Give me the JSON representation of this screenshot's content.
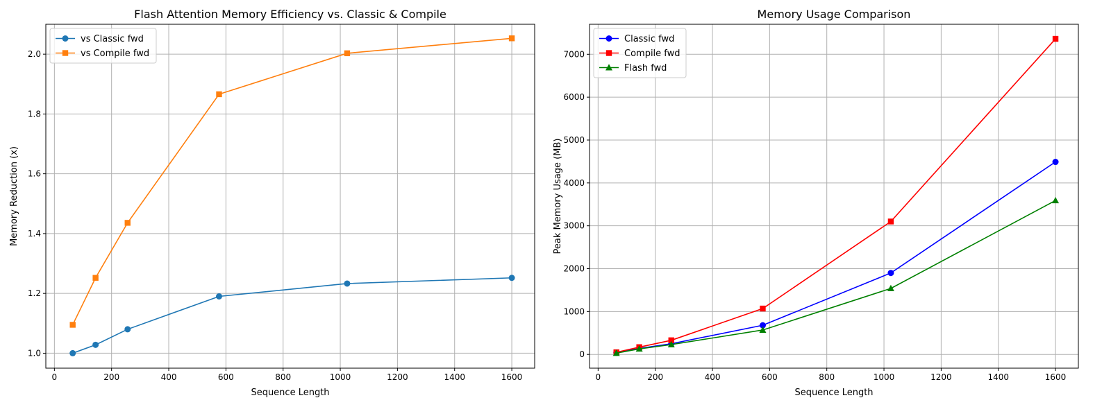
{
  "chart_data": [
    {
      "type": "line",
      "title": "Flash Attention Memory Efficiency vs. Classic & Compile",
      "xlabel": "Sequence Length",
      "ylabel": "Memory Reduction (x)",
      "xlim": [
        -30,
        1680
      ],
      "ylim": [
        0.95,
        2.1
      ],
      "xticks": [
        0,
        200,
        400,
        600,
        800,
        1000,
        1200,
        1400,
        1600
      ],
      "yticks": [
        1.0,
        1.2,
        1.4,
        1.6,
        1.8,
        2.0
      ],
      "ytick_decimals": 1,
      "grid": true,
      "legend_position": "upper left",
      "x": [
        64,
        144,
        256,
        576,
        1024,
        1600
      ],
      "series": [
        {
          "name": "vs Classic fwd",
          "color": "#1f77b4",
          "marker": "circle",
          "values": [
            1.0,
            1.028,
            1.08,
            1.19,
            1.233,
            1.252
          ]
        },
        {
          "name": "vs Compile fwd",
          "color": "#ff7f0e",
          "marker": "square",
          "values": [
            1.095,
            1.252,
            1.436,
            1.866,
            2.003,
            2.053
          ]
        }
      ]
    },
    {
      "type": "line",
      "title": "Memory Usage Comparison",
      "xlabel": "Sequence Length",
      "ylabel": "Peak Memory Usage (MB)",
      "xlim": [
        -30,
        1680
      ],
      "ylim": [
        -320,
        7700
      ],
      "xticks": [
        0,
        200,
        400,
        600,
        800,
        1000,
        1200,
        1400,
        1600
      ],
      "yticks": [
        0,
        1000,
        2000,
        3000,
        4000,
        5000,
        6000,
        7000
      ],
      "ytick_decimals": 0,
      "grid": true,
      "legend_position": "upper left",
      "x": [
        64,
        144,
        256,
        576,
        1024,
        1600
      ],
      "series": [
        {
          "name": "Classic fwd",
          "color": "#0000ff",
          "marker": "circle",
          "values": [
            40,
            140,
            250,
            680,
            1900,
            4490
          ]
        },
        {
          "name": "Compile fwd",
          "color": "#ff0000",
          "marker": "square",
          "values": [
            50,
            170,
            330,
            1070,
            3100,
            7360
          ]
        },
        {
          "name": "Flash fwd",
          "color": "#008000",
          "marker": "triangle",
          "values": [
            30,
            130,
            230,
            570,
            1540,
            3590
          ]
        }
      ]
    }
  ]
}
